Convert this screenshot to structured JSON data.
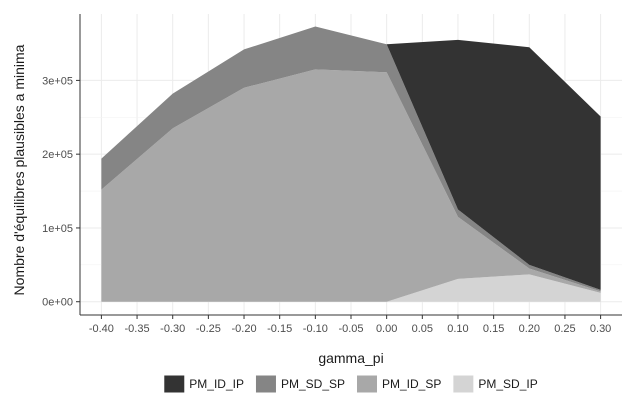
{
  "chart_data": {
    "type": "area",
    "xlabel": "gamma_pi",
    "ylabel": "Nombre d'équilibres plausibles a minima",
    "xlim": [
      -0.43,
      0.33
    ],
    "ylim": [
      -18000,
      390000
    ],
    "x_ticks": [
      -0.4,
      -0.35,
      -0.3,
      -0.25,
      -0.2,
      -0.15,
      -0.1,
      -0.05,
      0.0,
      0.05,
      0.1,
      0.15,
      0.2,
      0.25,
      0.3
    ],
    "x_tick_labels": [
      "-0.40",
      "-0.35",
      "-0.30",
      "-0.25",
      "-0.20",
      "-0.15",
      "-0.10",
      "-0.05",
      "0.00",
      "0.05",
      "0.10",
      "0.15",
      "0.20",
      "0.25",
      "0.30"
    ],
    "y_ticks": [
      0,
      100000,
      200000,
      300000
    ],
    "y_tick_labels": [
      "0e+00",
      "1e+05",
      "2e+05",
      "3e+05"
    ],
    "grid": true,
    "legend_position": "bottom",
    "x": [
      -0.4,
      -0.3,
      -0.2,
      -0.1,
      0.0,
      0.1,
      0.2,
      0.3
    ],
    "series": [
      {
        "name": "PM_ID_IP",
        "color": "#333333",
        "values": [
          0,
          0,
          0,
          0,
          0,
          230000,
          295000,
          235000
        ]
      },
      {
        "name": "PM_SD_SP",
        "color": "#858585",
        "values": [
          42000,
          47000,
          52000,
          58000,
          38000,
          10000,
          5000,
          2000
        ]
      },
      {
        "name": "PM_ID_SP",
        "color": "#a8a8a8",
        "values": [
          152000,
          235000,
          290000,
          315000,
          311000,
          84000,
          8000,
          2000
        ]
      },
      {
        "name": "PM_SD_IP",
        "color": "#d4d4d4",
        "values": [
          0,
          0,
          0,
          0,
          0,
          31000,
          37000,
          12000
        ]
      }
    ]
  }
}
